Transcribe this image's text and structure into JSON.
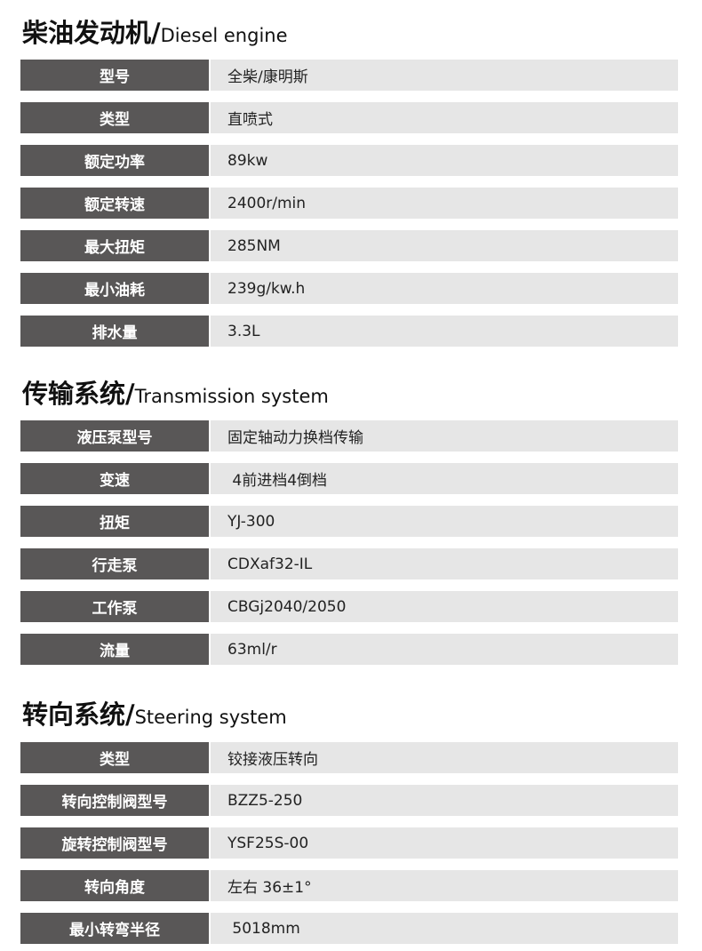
{
  "sections": [
    {
      "title_zh": "柴油发动机/",
      "title_en": "Diesel engine",
      "rows": [
        {
          "label": "型号",
          "value": "全柴/康明斯"
        },
        {
          "label": "类型",
          "value": "直喷式"
        },
        {
          "label": "额定功率",
          "value": "89kw"
        },
        {
          "label": "额定转速",
          "value": "2400r/min"
        },
        {
          "label": "最大扭矩",
          "value": "285NM"
        },
        {
          "label": "最小油耗",
          "value": "239g/kw.h"
        },
        {
          "label": "排水量",
          "value": "3.3L"
        }
      ]
    },
    {
      "title_zh": "传输系统/",
      "title_en": "Transmission system",
      "rows": [
        {
          "label": "液压泵型号",
          "value": "固定轴动力换档传输"
        },
        {
          "label": "变速",
          "value": " 4前进档4倒档"
        },
        {
          "label": "扭矩",
          "value": "YJ-300"
        },
        {
          "label": "行走泵",
          "value": "CDXaf32-IL"
        },
        {
          "label": "工作泵",
          "value": "CBGj2040/2050"
        },
        {
          "label": "流量",
          "value": "63ml/r"
        }
      ]
    },
    {
      "title_zh": "转向系统/",
      "title_en": "Steering system",
      "rows": [
        {
          "label": "类型",
          "value": "铰接液压转向"
        },
        {
          "label": "转向控制阀型号",
          "value": "BZZ5-250"
        },
        {
          "label": "旋转控制阀型号",
          "value": "YSF25S-00"
        },
        {
          "label": "转向角度",
          "value": "左右 36±1°"
        },
        {
          "label": "最小转弯半径",
          "value": " 5018mm"
        }
      ]
    }
  ]
}
